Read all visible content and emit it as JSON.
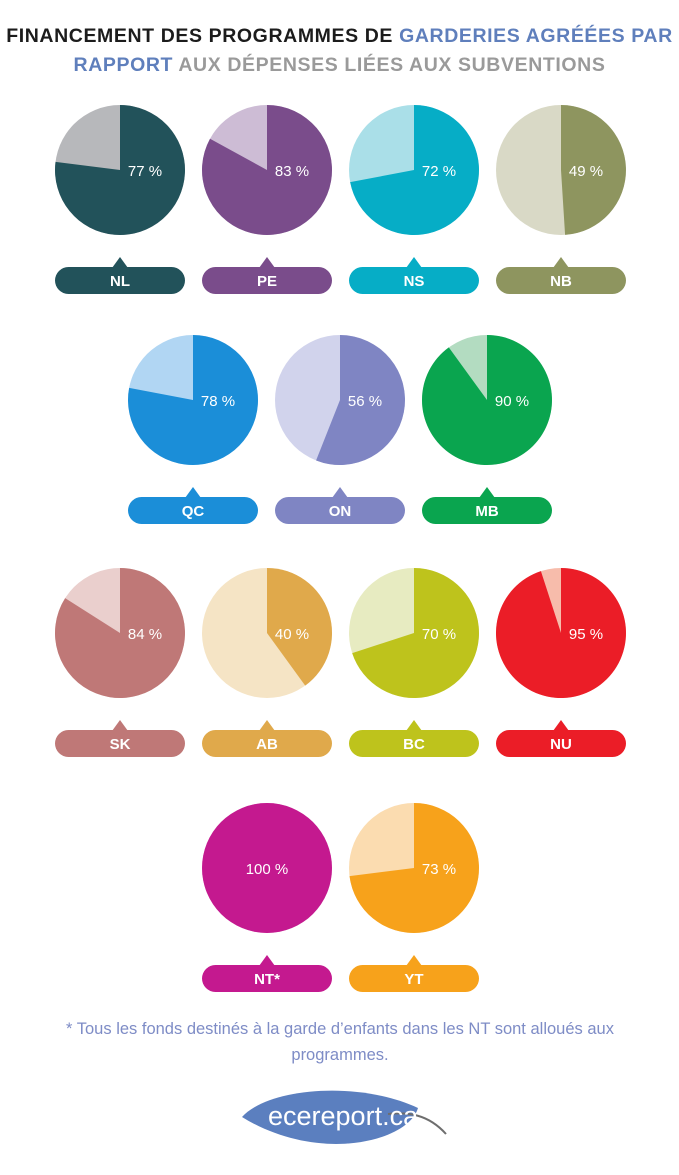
{
  "title": {
    "part1": "FINANCEMENT DES PROGRAMMES DE",
    "part2": "GARDERIES AGRÉÉES PAR",
    "part3": "RAPPORT",
    "part4": "AUX DÉPENSES LIÉES AUX SUBVENTIONS"
  },
  "colors": {
    "title_dark": "#1c1c1c",
    "title_blue": "#5f7fbc",
    "title_gray": "#9a9a9a",
    "footnote": "#7e8cc6",
    "logo": "#5b7fbf"
  },
  "chart_data": {
    "type": "pie",
    "unit": "%",
    "items": [
      {
        "label": "NL",
        "value": 77,
        "value_label": "77 %",
        "color": "#22525a",
        "light": "#b7b8bb"
      },
      {
        "label": "PE",
        "value": 83,
        "value_label": "83 %",
        "color": "#7a4c8b",
        "light": "#cdbcd5"
      },
      {
        "label": "NS",
        "value": 72,
        "value_label": "72 %",
        "color": "#06adc6",
        "light": "#aadfe8"
      },
      {
        "label": "NB",
        "value": 49,
        "value_label": "49 %",
        "color": "#8e955f",
        "light": "#d9d9c6"
      },
      {
        "label": "QC",
        "value": 78,
        "value_label": "78 %",
        "color": "#1b8ed8",
        "light": "#b1d6f3"
      },
      {
        "label": "ON",
        "value": 56,
        "value_label": "56 %",
        "color": "#7f85c3",
        "light": "#d1d3ec"
      },
      {
        "label": "MB",
        "value": 90,
        "value_label": "90 %",
        "color": "#0aa54f",
        "light": "#b3dcc1"
      },
      {
        "label": "SK",
        "value": 84,
        "value_label": "84 %",
        "color": "#bf7877",
        "light": "#eacfcd"
      },
      {
        "label": "AB",
        "value": 40,
        "value_label": "40 %",
        "color": "#e0a94b",
        "light": "#f5e4c5"
      },
      {
        "label": "BC",
        "value": 70,
        "value_label": "70 %",
        "color": "#bec31c",
        "light": "#e7ebc1"
      },
      {
        "label": "NU",
        "value": 95,
        "value_label": "95 %",
        "color": "#eb1d27",
        "light": "#f7bcab"
      },
      {
        "label": "NT*",
        "value": 100,
        "value_label": "100 %",
        "color": "#c4198f",
        "light": "#e7b3d7"
      },
      {
        "label": "YT",
        "value": 73,
        "value_label": "73 %",
        "color": "#f7a21b",
        "light": "#fbdcb0"
      }
    ]
  },
  "footnote": "* Tous les fonds destinés à la garde d’enfants dans les NT sont alloués aux programmes.",
  "logo": {
    "text": "ecereport.ca",
    "icon": "leaf-icon"
  }
}
